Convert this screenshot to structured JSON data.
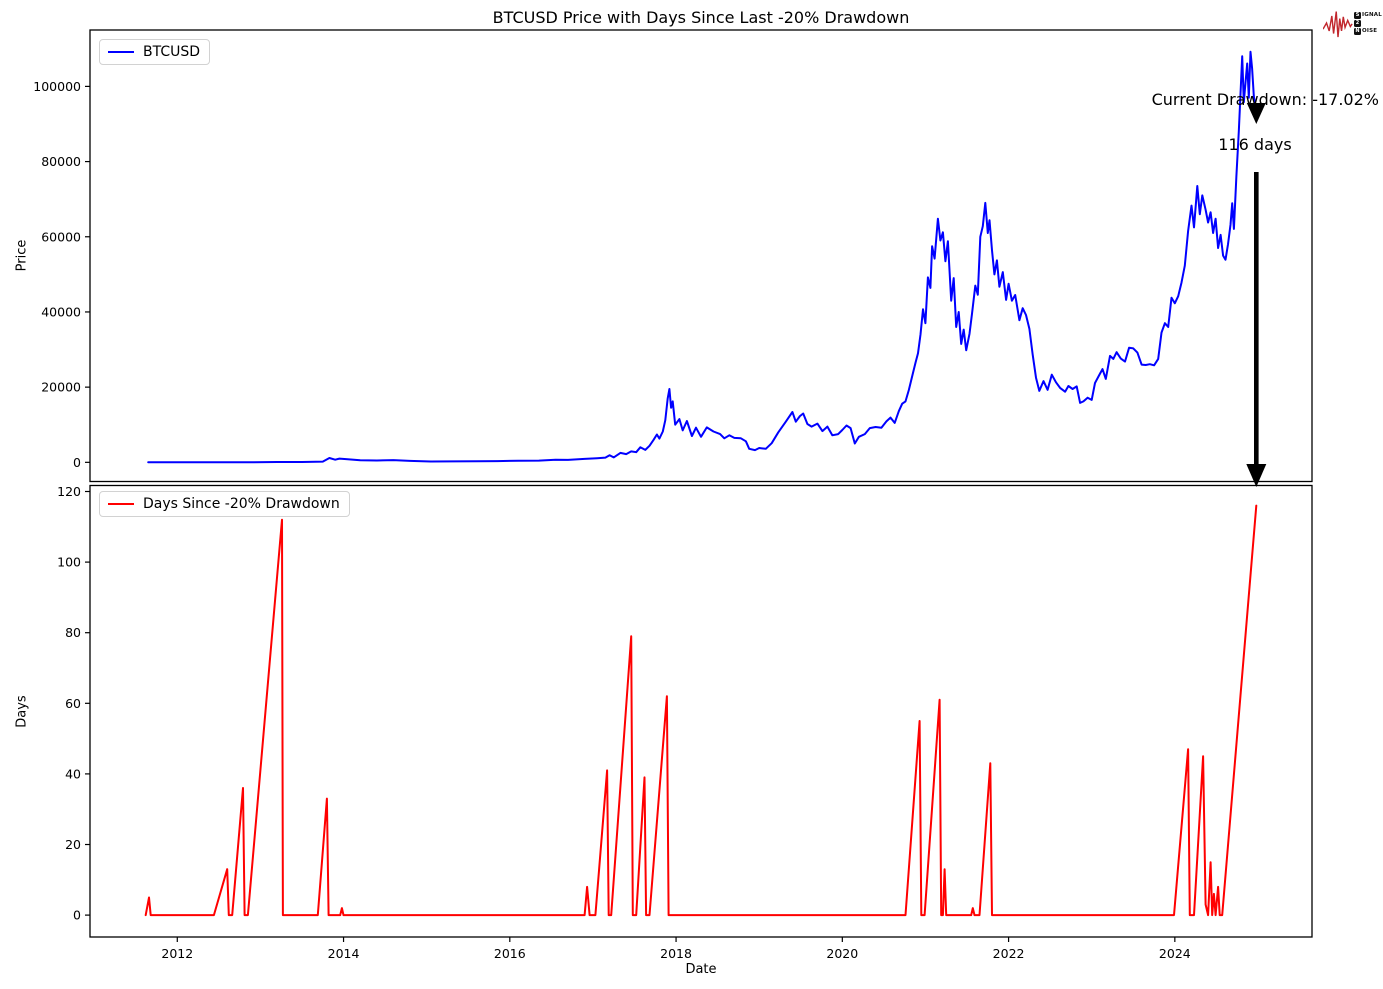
{
  "title": "BTCUSD Price with Days Since Last -20% Drawdown",
  "annotations": {
    "current_drawdown": "Current Drawdown: -17.02%",
    "days": "116 days"
  },
  "logo": {
    "signal_boxed": "S",
    "signal_rest": "IGNAL",
    "middle_boxed": "2",
    "noise_boxed": "N",
    "noise_rest": "OISE",
    "accent_color": "#c1272d"
  },
  "arrow": {
    "color": "#000000",
    "x_year": 2024.98
  },
  "chart_data": [
    {
      "type": "line",
      "name": "btcusd-price",
      "legend": "BTCUSD",
      "color": "#0000ff",
      "ylabel": "Price",
      "grid": false,
      "legend_position": "upper-left",
      "xlim": [
        2010.95,
        2025.65
      ],
      "ylim": [
        -5100,
        115000
      ],
      "yticks": [
        0,
        20000,
        40000,
        60000,
        80000,
        100000
      ],
      "ytick_labels": [
        "0",
        "20000",
        "40000",
        "60000",
        "80000",
        "100000"
      ],
      "series": [
        [
          2011.65,
          5
        ],
        [
          2012.2,
          5
        ],
        [
          2012.9,
          13
        ],
        [
          2013.2,
          100
        ],
        [
          2013.5,
          100
        ],
        [
          2013.75,
          200
        ],
        [
          2013.83,
          1150
        ],
        [
          2013.9,
          700
        ],
        [
          2013.95,
          1000
        ],
        [
          2014.05,
          800
        ],
        [
          2014.2,
          550
        ],
        [
          2014.4,
          480
        ],
        [
          2014.6,
          600
        ],
        [
          2014.8,
          380
        ],
        [
          2015.05,
          220
        ],
        [
          2015.3,
          250
        ],
        [
          2015.6,
          270
        ],
        [
          2015.85,
          330
        ],
        [
          2016.1,
          420
        ],
        [
          2016.35,
          450
        ],
        [
          2016.55,
          700
        ],
        [
          2016.7,
          650
        ],
        [
          2016.9,
          900
        ],
        [
          2017.05,
          1100
        ],
        [
          2017.15,
          1250
        ],
        [
          2017.2,
          1900
        ],
        [
          2017.25,
          1300
        ],
        [
          2017.33,
          2500
        ],
        [
          2017.4,
          2200
        ],
        [
          2017.46,
          2900
        ],
        [
          2017.52,
          2700
        ],
        [
          2017.57,
          4000
        ],
        [
          2017.63,
          3300
        ],
        [
          2017.68,
          4400
        ],
        [
          2017.73,
          6000
        ],
        [
          2017.77,
          7400
        ],
        [
          2017.8,
          6300
        ],
        [
          2017.84,
          8200
        ],
        [
          2017.87,
          11200
        ],
        [
          2017.9,
          17000
        ],
        [
          2017.92,
          19500
        ],
        [
          2017.94,
          14500
        ],
        [
          2017.96,
          16200
        ],
        [
          2017.99,
          10000
        ],
        [
          2018.04,
          11500
        ],
        [
          2018.08,
          8500
        ],
        [
          2018.13,
          11000
        ],
        [
          2018.19,
          7000
        ],
        [
          2018.24,
          9200
        ],
        [
          2018.3,
          6800
        ],
        [
          2018.37,
          9300
        ],
        [
          2018.45,
          8200
        ],
        [
          2018.53,
          7500
        ],
        [
          2018.58,
          6400
        ],
        [
          2018.64,
          7200
        ],
        [
          2018.7,
          6500
        ],
        [
          2018.78,
          6400
        ],
        [
          2018.84,
          5600
        ],
        [
          2018.88,
          3600
        ],
        [
          2018.95,
          3250
        ],
        [
          2019.0,
          3800
        ],
        [
          2019.08,
          3600
        ],
        [
          2019.15,
          5100
        ],
        [
          2019.23,
          8000
        ],
        [
          2019.32,
          10800
        ],
        [
          2019.4,
          13400
        ],
        [
          2019.44,
          10800
        ],
        [
          2019.49,
          12300
        ],
        [
          2019.53,
          13000
        ],
        [
          2019.58,
          10200
        ],
        [
          2019.63,
          9500
        ],
        [
          2019.7,
          10300
        ],
        [
          2019.76,
          8300
        ],
        [
          2019.82,
          9500
        ],
        [
          2019.88,
          7200
        ],
        [
          2019.95,
          7500
        ],
        [
          2020.0,
          8600
        ],
        [
          2020.05,
          9800
        ],
        [
          2020.1,
          9100
        ],
        [
          2020.15,
          5000
        ],
        [
          2020.2,
          6800
        ],
        [
          2020.27,
          7500
        ],
        [
          2020.33,
          9100
        ],
        [
          2020.4,
          9400
        ],
        [
          2020.47,
          9200
        ],
        [
          2020.53,
          10900
        ],
        [
          2020.58,
          11900
        ],
        [
          2020.63,
          10500
        ],
        [
          2020.68,
          13600
        ],
        [
          2020.72,
          15600
        ],
        [
          2020.76,
          16200
        ],
        [
          2020.8,
          19200
        ],
        [
          2020.85,
          23800
        ],
        [
          2020.88,
          26500
        ],
        [
          2020.91,
          29000
        ],
        [
          2020.94,
          34000
        ],
        [
          2020.97,
          40700
        ],
        [
          2021.0,
          37000
        ],
        [
          2021.03,
          49200
        ],
        [
          2021.06,
          46400
        ],
        [
          2021.08,
          57500
        ],
        [
          2021.11,
          54200
        ],
        [
          2021.15,
          64800
        ],
        [
          2021.18,
          59000
        ],
        [
          2021.21,
          61200
        ],
        [
          2021.24,
          53500
        ],
        [
          2021.27,
          58800
        ],
        [
          2021.31,
          43000
        ],
        [
          2021.34,
          49000
        ],
        [
          2021.37,
          36000
        ],
        [
          2021.4,
          40000
        ],
        [
          2021.43,
          31500
        ],
        [
          2021.46,
          35300
        ],
        [
          2021.49,
          29800
        ],
        [
          2021.53,
          34200
        ],
        [
          2021.56,
          39500
        ],
        [
          2021.6,
          47000
        ],
        [
          2021.63,
          44600
        ],
        [
          2021.66,
          60000
        ],
        [
          2021.69,
          62800
        ],
        [
          2021.72,
          69000
        ],
        [
          2021.75,
          61000
        ],
        [
          2021.77,
          64400
        ],
        [
          2021.8,
          56400
        ],
        [
          2021.83,
          50000
        ],
        [
          2021.86,
          53700
        ],
        [
          2021.89,
          46700
        ],
        [
          2021.93,
          50600
        ],
        [
          2021.97,
          43200
        ],
        [
          2022.0,
          47500
        ],
        [
          2022.04,
          43000
        ],
        [
          2022.08,
          44500
        ],
        [
          2022.13,
          37800
        ],
        [
          2022.17,
          41000
        ],
        [
          2022.21,
          39200
        ],
        [
          2022.25,
          35500
        ],
        [
          2022.29,
          28600
        ],
        [
          2022.33,
          22500
        ],
        [
          2022.37,
          19000
        ],
        [
          2022.42,
          21600
        ],
        [
          2022.47,
          19300
        ],
        [
          2022.52,
          23300
        ],
        [
          2022.57,
          21300
        ],
        [
          2022.62,
          19800
        ],
        [
          2022.68,
          18800
        ],
        [
          2022.72,
          20300
        ],
        [
          2022.77,
          19500
        ],
        [
          2022.82,
          20200
        ],
        [
          2022.86,
          15800
        ],
        [
          2022.9,
          16200
        ],
        [
          2022.95,
          17200
        ],
        [
          2023.0,
          16600
        ],
        [
          2023.04,
          21100
        ],
        [
          2023.09,
          23200
        ],
        [
          2023.13,
          24800
        ],
        [
          2023.17,
          22200
        ],
        [
          2023.22,
          28300
        ],
        [
          2023.26,
          27500
        ],
        [
          2023.3,
          29300
        ],
        [
          2023.35,
          27600
        ],
        [
          2023.4,
          26800
        ],
        [
          2023.45,
          30500
        ],
        [
          2023.5,
          30300
        ],
        [
          2023.55,
          29200
        ],
        [
          2023.6,
          26000
        ],
        [
          2023.65,
          25900
        ],
        [
          2023.7,
          26100
        ],
        [
          2023.75,
          25800
        ],
        [
          2023.8,
          27500
        ],
        [
          2023.84,
          34500
        ],
        [
          2023.88,
          37000
        ],
        [
          2023.92,
          36000
        ],
        [
          2023.96,
          43800
        ],
        [
          2024.0,
          42300
        ],
        [
          2024.04,
          44200
        ],
        [
          2024.08,
          47800
        ],
        [
          2024.12,
          52300
        ],
        [
          2024.16,
          61500
        ],
        [
          2024.2,
          68300
        ],
        [
          2024.23,
          62500
        ],
        [
          2024.27,
          73500
        ],
        [
          2024.3,
          66000
        ],
        [
          2024.33,
          71000
        ],
        [
          2024.37,
          67200
        ],
        [
          2024.4,
          63800
        ],
        [
          2024.43,
          66500
        ],
        [
          2024.46,
          61000
        ],
        [
          2024.49,
          64800
        ],
        [
          2024.52,
          57000
        ],
        [
          2024.55,
          60500
        ],
        [
          2024.58,
          55000
        ],
        [
          2024.61,
          53900
        ],
        [
          2024.64,
          58000
        ],
        [
          2024.67,
          63200
        ],
        [
          2024.69,
          68900
        ],
        [
          2024.71,
          62100
        ],
        [
          2024.74,
          76200
        ],
        [
          2024.77,
          88000
        ],
        [
          2024.79,
          98000
        ],
        [
          2024.81,
          108000
        ],
        [
          2024.83,
          95800
        ],
        [
          2024.85,
          101000
        ],
        [
          2024.87,
          106100
        ],
        [
          2024.89,
          97000
        ],
        [
          2024.91,
          109200
        ],
        [
          2024.93,
          104800
        ],
        [
          2024.95,
          97500
        ],
        [
          2024.97,
          94300
        ],
        [
          2024.98,
          91000
        ]
      ]
    },
    {
      "type": "line",
      "name": "days-since-drawdown",
      "legend": "Days Since -20% Drawdown",
      "color": "#ff0000",
      "ylabel": "Days",
      "xlabel": "Date",
      "grid": false,
      "legend_position": "upper-left",
      "xlim": [
        2010.95,
        2025.65
      ],
      "ylim": [
        -6.2,
        121.7
      ],
      "yticks": [
        0,
        20,
        40,
        60,
        80,
        100,
        120
      ],
      "ytick_labels": [
        "0",
        "20",
        "40",
        "60",
        "80",
        "100",
        "120"
      ],
      "xticks": [
        2012,
        2014,
        2016,
        2018,
        2020,
        2022,
        2024
      ],
      "xtick_labels": [
        "2012",
        "2014",
        "2016",
        "2018",
        "2020",
        "2022",
        "2024"
      ],
      "series": [
        [
          2011.62,
          0
        ],
        [
          2011.66,
          5
        ],
        [
          2011.68,
          0
        ],
        [
          2012.44,
          0
        ],
        [
          2012.6,
          13
        ],
        [
          2012.62,
          0
        ],
        [
          2012.66,
          0
        ],
        [
          2012.79,
          36
        ],
        [
          2012.81,
          0
        ],
        [
          2012.85,
          0
        ],
        [
          2013.26,
          112
        ],
        [
          2013.27,
          0
        ],
        [
          2013.69,
          0
        ],
        [
          2013.8,
          33
        ],
        [
          2013.82,
          0
        ],
        [
          2013.96,
          0
        ],
        [
          2013.98,
          2
        ],
        [
          2014.0,
          0
        ],
        [
          2016.9,
          0
        ],
        [
          2016.93,
          8
        ],
        [
          2016.96,
          0
        ],
        [
          2017.03,
          0
        ],
        [
          2017.17,
          41
        ],
        [
          2017.19,
          0
        ],
        [
          2017.22,
          0
        ],
        [
          2017.46,
          79
        ],
        [
          2017.48,
          0
        ],
        [
          2017.52,
          0
        ],
        [
          2017.62,
          39
        ],
        [
          2017.64,
          0
        ],
        [
          2017.68,
          0
        ],
        [
          2017.89,
          62
        ],
        [
          2017.91,
          0
        ],
        [
          2020.76,
          0
        ],
        [
          2020.93,
          55
        ],
        [
          2020.95,
          0
        ],
        [
          2020.99,
          0
        ],
        [
          2021.17,
          61
        ],
        [
          2021.19,
          0
        ],
        [
          2021.21,
          0
        ],
        [
          2021.23,
          13
        ],
        [
          2021.25,
          0
        ],
        [
          2021.55,
          0
        ],
        [
          2021.57,
          2
        ],
        [
          2021.59,
          0
        ],
        [
          2021.65,
          0
        ],
        [
          2021.78,
          43
        ],
        [
          2021.8,
          0
        ],
        [
          2023.99,
          0
        ],
        [
          2024.16,
          47
        ],
        [
          2024.18,
          0
        ],
        [
          2024.23,
          0
        ],
        [
          2024.34,
          45
        ],
        [
          2024.37,
          3
        ],
        [
          2024.4,
          0
        ],
        [
          2024.43,
          15
        ],
        [
          2024.45,
          0
        ],
        [
          2024.47,
          6
        ],
        [
          2024.49,
          0
        ],
        [
          2024.52,
          8
        ],
        [
          2024.54,
          0
        ],
        [
          2024.57,
          0
        ],
        [
          2024.98,
          116
        ]
      ]
    }
  ]
}
